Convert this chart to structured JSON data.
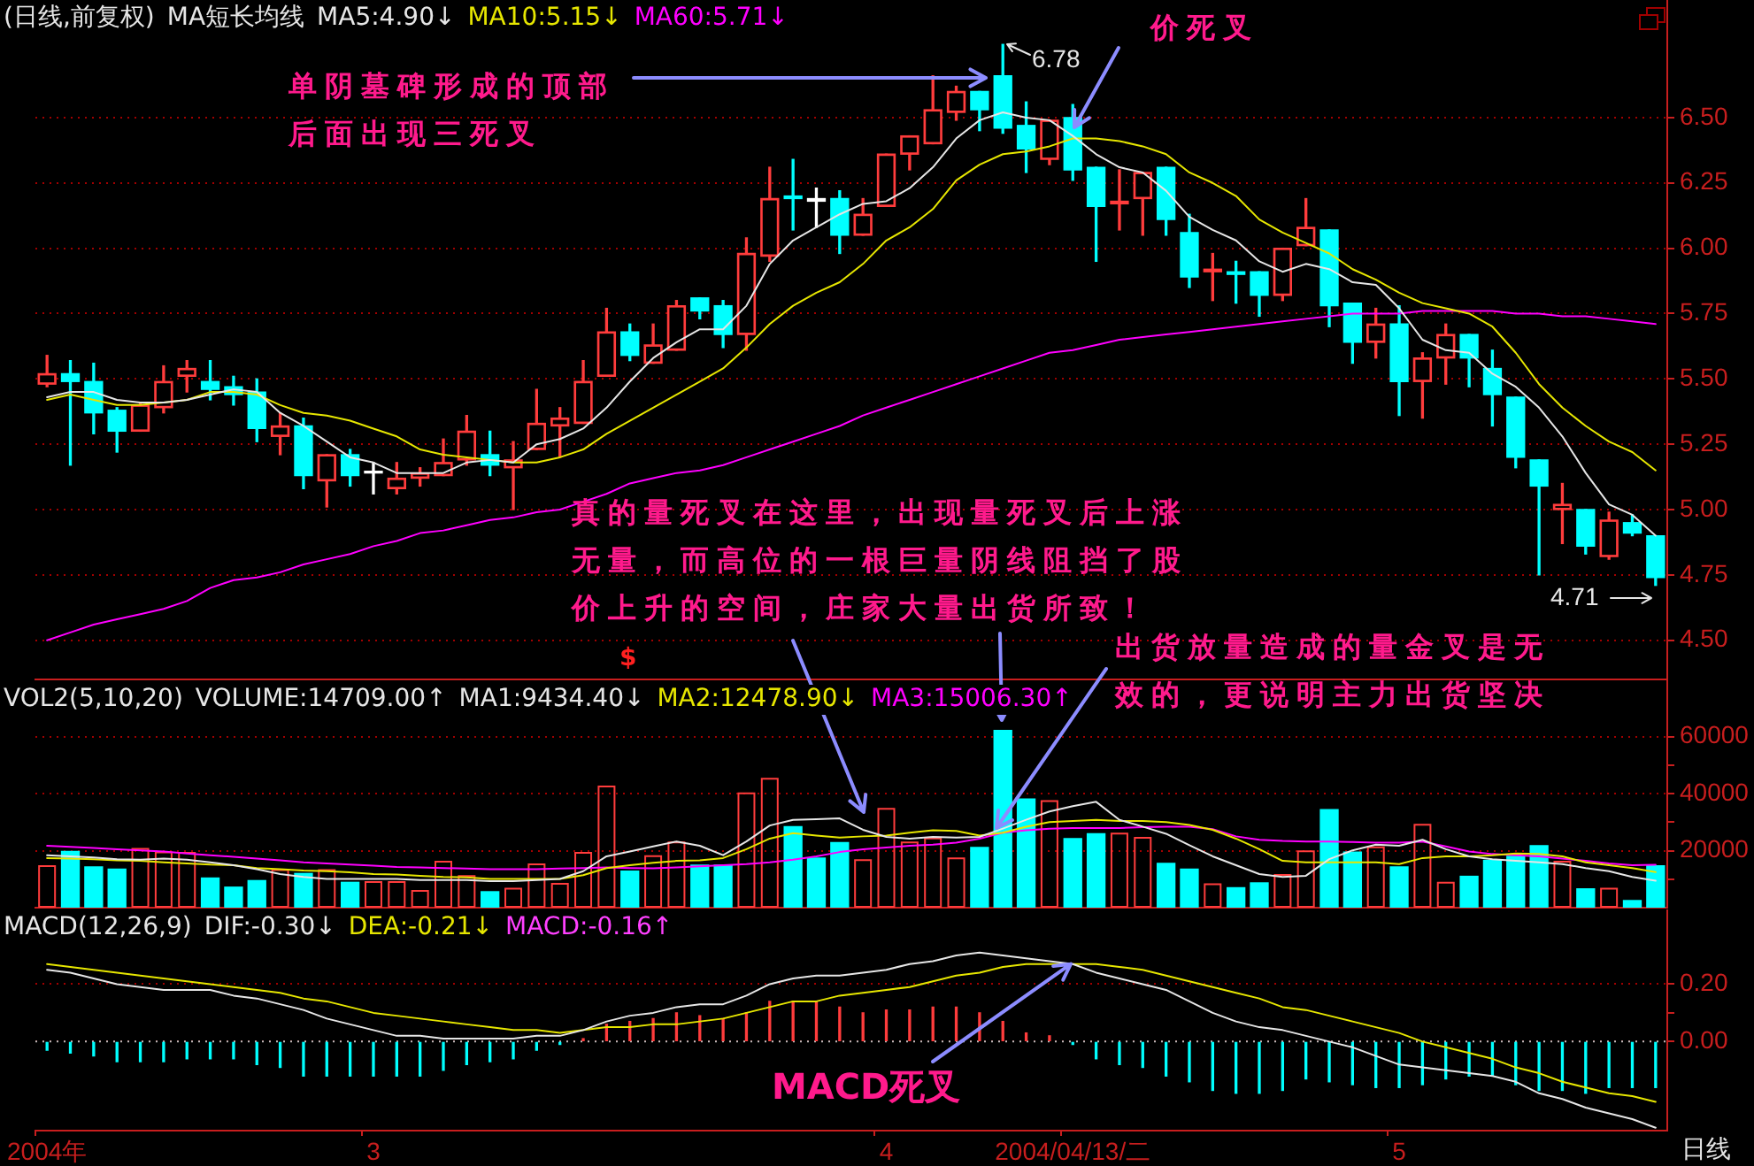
{
  "chart_data": [
    {
      "type": "candlestick",
      "title": "(日线,前复权)",
      "legend_title": "MA短长均线",
      "categories": [
        null,
        null,
        null,
        null,
        null,
        null,
        null,
        null,
        null,
        null,
        null,
        null,
        null,
        null,
        null,
        null,
        null,
        null,
        null,
        null,
        null,
        null,
        null,
        null,
        null,
        null,
        null,
        null,
        null,
        null,
        null,
        null,
        null,
        null,
        null,
        null,
        null,
        null,
        null,
        null,
        null,
        null,
        null,
        null,
        null,
        null,
        null,
        null,
        null,
        null,
        null,
        null,
        null,
        null,
        null,
        null,
        null,
        null,
        null,
        null,
        null,
        null,
        null,
        null,
        null,
        null,
        null,
        null,
        null,
        null
      ],
      "ohlc": [
        [
          5.48,
          5.59,
          5.47,
          5.52
        ],
        [
          5.52,
          5.57,
          5.17,
          5.49
        ],
        [
          5.49,
          5.56,
          5.29,
          5.37
        ],
        [
          5.38,
          5.39,
          5.22,
          5.3
        ],
        [
          5.3,
          5.41,
          5.3,
          5.4
        ],
        [
          5.39,
          5.55,
          5.37,
          5.49
        ],
        [
          5.51,
          5.57,
          5.45,
          5.54
        ],
        [
          5.49,
          5.57,
          5.42,
          5.46
        ],
        [
          5.47,
          5.51,
          5.4,
          5.44
        ],
        [
          5.45,
          5.5,
          5.26,
          5.31
        ],
        [
          5.28,
          5.37,
          5.21,
          5.32
        ],
        [
          5.32,
          5.35,
          5.08,
          5.13
        ],
        [
          5.11,
          5.21,
          5.01,
          5.21
        ],
        [
          5.21,
          5.23,
          5.09,
          5.13
        ],
        [
          5.14,
          5.18,
          5.06,
          5.14
        ],
        [
          5.08,
          5.18,
          5.06,
          5.12
        ],
        [
          5.12,
          5.16,
          5.09,
          5.14
        ],
        [
          5.13,
          5.27,
          5.13,
          5.18
        ],
        [
          5.19,
          5.36,
          5.17,
          5.3
        ],
        [
          5.21,
          5.3,
          5.13,
          5.17
        ],
        [
          5.16,
          5.26,
          5.0,
          5.19
        ],
        [
          5.23,
          5.46,
          5.23,
          5.33
        ],
        [
          5.32,
          5.39,
          5.2,
          5.35
        ],
        [
          5.33,
          5.57,
          5.33,
          5.49
        ],
        [
          5.51,
          5.77,
          5.51,
          5.68
        ],
        [
          5.68,
          5.71,
          5.57,
          5.59
        ],
        [
          5.56,
          5.71,
          5.56,
          5.63
        ],
        [
          5.61,
          5.8,
          5.61,
          5.78
        ],
        [
          5.81,
          5.81,
          5.73,
          5.76
        ],
        [
          5.78,
          5.8,
          5.62,
          5.67
        ],
        [
          5.67,
          6.04,
          5.61,
          5.98
        ],
        [
          5.97,
          6.31,
          5.95,
          6.19
        ],
        [
          6.2,
          6.34,
          6.07,
          6.19
        ],
        [
          6.19,
          6.23,
          6.08,
          6.18
        ],
        [
          6.19,
          6.22,
          5.98,
          6.05
        ],
        [
          6.05,
          6.19,
          6.05,
          6.13
        ],
        [
          6.16,
          6.36,
          6.16,
          6.36
        ],
        [
          6.36,
          6.43,
          6.3,
          6.43
        ],
        [
          6.4,
          6.66,
          6.4,
          6.53
        ],
        [
          6.52,
          6.62,
          6.49,
          6.6
        ],
        [
          6.6,
          6.6,
          6.45,
          6.53
        ],
        [
          6.66,
          6.78,
          6.44,
          6.46
        ],
        [
          6.47,
          6.56,
          6.29,
          6.38
        ],
        [
          6.34,
          6.49,
          6.32,
          6.49
        ],
        [
          6.5,
          6.55,
          6.26,
          6.3
        ],
        [
          6.31,
          6.31,
          5.95,
          6.16
        ],
        [
          6.17,
          6.3,
          6.07,
          6.18
        ],
        [
          6.19,
          6.29,
          6.05,
          6.29
        ],
        [
          6.31,
          6.31,
          6.05,
          6.11
        ],
        [
          6.06,
          6.13,
          5.85,
          5.89
        ],
        [
          5.91,
          5.98,
          5.8,
          5.92
        ],
        [
          5.91,
          5.95,
          5.79,
          5.9
        ],
        [
          5.91,
          5.91,
          5.74,
          5.82
        ],
        [
          5.82,
          6.0,
          5.8,
          6.0
        ],
        [
          6.01,
          6.19,
          6.01,
          6.08
        ],
        [
          6.07,
          6.07,
          5.7,
          5.78
        ],
        [
          5.79,
          5.79,
          5.56,
          5.64
        ],
        [
          5.64,
          5.77,
          5.58,
          5.71
        ],
        [
          5.71,
          5.78,
          5.36,
          5.49
        ],
        [
          5.49,
          5.6,
          5.35,
          5.58
        ],
        [
          5.58,
          5.71,
          5.48,
          5.67
        ],
        [
          5.67,
          5.67,
          5.47,
          5.58
        ],
        [
          5.54,
          5.61,
          5.32,
          5.44
        ],
        [
          5.43,
          5.43,
          5.16,
          5.2
        ],
        [
          5.19,
          5.19,
          4.75,
          5.09
        ],
        [
          5.0,
          5.1,
          4.87,
          5.02
        ],
        [
          5.0,
          5.0,
          4.83,
          4.86
        ],
        [
          4.82,
          4.99,
          4.81,
          4.96
        ],
        [
          4.95,
          4.98,
          4.9,
          4.91
        ],
        [
          4.9,
          4.9,
          4.71,
          4.74
        ]
      ],
      "colors": [
        "#ff3c3c",
        "#00ffff",
        "#00ffff",
        "#00ffff",
        "#ff3c3c",
        "#ff3c3c",
        "#ff3c3c",
        "#00ffff",
        "#00ffff",
        "#00ffff",
        "#ff3c3c",
        "#00ffff",
        "#ff3c3c",
        "#00ffff",
        "#ffffff",
        "#ff3c3c",
        "#ff3c3c",
        "#ff3c3c",
        "#ff3c3c",
        "#00ffff",
        "#ff3c3c",
        "#ff3c3c",
        "#ff3c3c",
        "#ff3c3c",
        "#ff3c3c",
        "#00ffff",
        "#ff3c3c",
        "#ff3c3c",
        "#00ffff",
        "#00ffff",
        "#ff3c3c",
        "#ff3c3c",
        "#00ffff",
        "#ffffff",
        "#00ffff",
        "#ff3c3c",
        "#ff3c3c",
        "#ff3c3c",
        "#ff3c3c",
        "#ff3c3c",
        "#00ffff",
        "#00ffff",
        "#00ffff",
        "#ff3c3c",
        "#00ffff",
        "#00ffff",
        "#ff3c3c",
        "#ff3c3c",
        "#00ffff",
        "#00ffff",
        "#ff3c3c",
        "#00ffff",
        "#00ffff",
        "#ff3c3c",
        "#ff3c3c",
        "#00ffff",
        "#00ffff",
        "#ff3c3c",
        "#00ffff",
        "#ff3c3c",
        "#ff3c3c",
        "#00ffff",
        "#00ffff",
        "#00ffff",
        "#00ffff",
        "#ff3c3c",
        "#00ffff",
        "#ff3c3c",
        "#00ffff",
        "#00ffff"
      ],
      "series": [
        {
          "name": "MA5:4.90↓",
          "type": "line",
          "color": "#e6e6e6",
          "values": [
            5.43,
            5.45,
            5.45,
            5.42,
            5.41,
            5.41,
            5.42,
            5.44,
            5.46,
            5.45,
            5.37,
            5.32,
            5.26,
            5.2,
            5.18,
            5.14,
            5.14,
            5.14,
            5.18,
            5.19,
            5.18,
            5.25,
            5.27,
            5.31,
            5.39,
            5.49,
            5.58,
            5.64,
            5.69,
            5.69,
            5.78,
            5.94,
            6.03,
            6.08,
            6.13,
            6.17,
            6.18,
            6.23,
            6.31,
            6.42,
            6.49,
            6.52,
            6.5,
            6.49,
            6.43,
            6.36,
            6.31,
            6.29,
            6.22,
            6.12,
            6.07,
            6.03,
            5.95,
            5.91,
            5.94,
            5.92,
            5.87,
            5.86,
            5.77,
            5.65,
            5.61,
            5.6,
            5.52,
            5.47,
            5.39,
            5.28,
            5.14,
            5.02,
            4.98,
            4.9
          ]
        },
        {
          "name": "MA10:5.15↓",
          "type": "line",
          "color": "#e6e600",
          "values": [
            5.42,
            5.44,
            5.42,
            5.4,
            5.4,
            5.41,
            5.42,
            5.45,
            5.45,
            5.44,
            5.4,
            5.37,
            5.36,
            5.34,
            5.31,
            5.28,
            5.23,
            5.21,
            5.2,
            5.19,
            5.18,
            5.18,
            5.2,
            5.23,
            5.29,
            5.34,
            5.39,
            5.44,
            5.49,
            5.54,
            5.62,
            5.71,
            5.78,
            5.83,
            5.87,
            5.94,
            6.03,
            6.08,
            6.15,
            6.26,
            6.32,
            6.36,
            6.37,
            6.39,
            6.42,
            6.42,
            6.41,
            6.39,
            6.36,
            6.29,
            6.25,
            6.2,
            6.11,
            6.06,
            6.02,
            5.98,
            5.92,
            5.88,
            5.83,
            5.79,
            5.77,
            5.75,
            5.7,
            5.6,
            5.48,
            5.39,
            5.32,
            5.26,
            5.22,
            5.15
          ]
        },
        {
          "name": "MA60:5.71↓",
          "type": "line",
          "color": "#ff00ff",
          "values": [
            4.5,
            4.53,
            4.56,
            4.58,
            4.6,
            4.62,
            4.65,
            4.7,
            4.73,
            4.74,
            4.76,
            4.79,
            4.81,
            4.83,
            4.86,
            4.88,
            4.91,
            4.92,
            4.94,
            4.96,
            4.97,
            4.99,
            5.0,
            5.03,
            5.06,
            5.1,
            5.12,
            5.14,
            5.15,
            5.17,
            5.2,
            5.23,
            5.26,
            5.29,
            5.32,
            5.36,
            5.39,
            5.42,
            5.45,
            5.48,
            5.51,
            5.54,
            5.57,
            5.6,
            5.61,
            5.63,
            5.65,
            5.66,
            5.67,
            5.68,
            5.69,
            5.7,
            5.71,
            5.72,
            5.73,
            5.74,
            5.75,
            5.75,
            5.75,
            5.76,
            5.76,
            5.76,
            5.76,
            5.75,
            5.75,
            5.74,
            5.74,
            5.73,
            5.72,
            5.71
          ]
        }
      ],
      "ylim": [
        4.35,
        6.95
      ],
      "yticks": [
        {
          "value": 4.5,
          "label": "4.50"
        },
        {
          "value": 4.75,
          "label": "4.75"
        },
        {
          "value": 5,
          "label": "5.00"
        },
        {
          "value": 5.25,
          "label": "5.25"
        },
        {
          "value": 5.5,
          "label": "5.50"
        },
        {
          "value": 5.75,
          "label": "5.75"
        },
        {
          "value": 6,
          "label": "6.00"
        },
        {
          "value": 6.25,
          "label": "6.25"
        },
        {
          "value": 6.5,
          "label": "6.50"
        }
      ],
      "grid": "y",
      "legend": "top left",
      "tick_labels": "y",
      "annotations": [
        "单阴墓碑形成的顶部后面出现三死叉",
        "价死叉",
        "6.78",
        "4.71",
        "真的量死叉在这里，出现量死叉后上涨无量，而高位的一根巨量阴线阻挡了股价上升的空间，庄家大量出货所致！",
        "$"
      ]
    },
    {
      "type": "bar",
      "title": "VOL2(5,10,20)",
      "subtitle": "VOLUME:14709.00↑",
      "categories": [
        null,
        null,
        null,
        null,
        null,
        null,
        null,
        null,
        null,
        null,
        null,
        null,
        null,
        null,
        null,
        null,
        null,
        null,
        null,
        null,
        null,
        null,
        null,
        null,
        null,
        null,
        null,
        null,
        null,
        null,
        null,
        null,
        null,
        null,
        null,
        null,
        null,
        null,
        null,
        null,
        null,
        null,
        null,
        null,
        null,
        null,
        null,
        null,
        null,
        null,
        null,
        null,
        null,
        null,
        null,
        null,
        null,
        null,
        null,
        null,
        null,
        null,
        null,
        null,
        null,
        null,
        null,
        null,
        null,
        null
      ],
      "series": [
        {
          "type": "bar",
          "colors": [
            "#ff3c3c",
            "#00ffff",
            "#00ffff",
            "#00ffff",
            "#ff3c3c",
            "#ff3c3c",
            "#ff3c3c",
            "#00ffff",
            "#00ffff",
            "#00ffff",
            "#ff3c3c",
            "#00ffff",
            "#ff3c3c",
            "#00ffff",
            "#ff3c3c",
            "#ff3c3c",
            "#ff3c3c",
            "#ff3c3c",
            "#ff3c3c",
            "#00ffff",
            "#ff3c3c",
            "#ff3c3c",
            "#ff3c3c",
            "#ff3c3c",
            "#ff3c3c",
            "#00ffff",
            "#ff3c3c",
            "#ff3c3c",
            "#00ffff",
            "#00ffff",
            "#ff3c3c",
            "#ff3c3c",
            "#00ffff",
            "#00ffff",
            "#00ffff",
            "#ff3c3c",
            "#ff3c3c",
            "#ff3c3c",
            "#ff3c3c",
            "#ff3c3c",
            "#00ffff",
            "#00ffff",
            "#00ffff",
            "#ff3c3c",
            "#00ffff",
            "#00ffff",
            "#ff3c3c",
            "#ff3c3c",
            "#00ffff",
            "#00ffff",
            "#ff3c3c",
            "#00ffff",
            "#00ffff",
            "#ff3c3c",
            "#ff3c3c",
            "#00ffff",
            "#00ffff",
            "#ff3c3c",
            "#00ffff",
            "#ff3c3c",
            "#ff3c3c",
            "#00ffff",
            "#00ffff",
            "#00ffff",
            "#00ffff",
            "#ff3c3c",
            "#00ffff",
            "#ff3c3c",
            "#00ffff",
            "#00ffff"
          ],
          "values": [
            14900,
            19700,
            14300,
            13500,
            20900,
            19700,
            19500,
            10400,
            7200,
            9500,
            13500,
            12000,
            13500,
            8900,
            9300,
            9300,
            6200,
            16400,
            11400,
            5600,
            7000,
            15500,
            8700,
            19500,
            42800,
            12800,
            18400,
            23200,
            14900,
            14900,
            40400,
            45500,
            28400,
            17400,
            22800,
            17000,
            35000,
            23200,
            24600,
            17600,
            21100,
            62100,
            38100,
            37700,
            24200,
            25900,
            26300,
            24800,
            15500,
            13500,
            8500,
            7000,
            8700,
            11800,
            20100,
            34400,
            19500,
            21500,
            14300,
            29400,
            9100,
            11000,
            16600,
            18000,
            21700,
            16400,
            6600,
            7000,
            2500,
            14709
          ]
        },
        {
          "name": "MA1:9434.40↓",
          "type": "line",
          "color": "#e6e6e6",
          "values": [
            18400,
            18000,
            17600,
            17000,
            16800,
            17200,
            16800,
            15900,
            14900,
            13500,
            11800,
            10800,
            10100,
            10100,
            10100,
            10100,
            9700,
            9700,
            9700,
            9300,
            9300,
            9700,
            10100,
            12800,
            18000,
            19700,
            21500,
            23200,
            21700,
            18400,
            23200,
            28800,
            30800,
            31000,
            31300,
            27300,
            24800,
            24200,
            24800,
            24600,
            24800,
            27700,
            30800,
            33700,
            35600,
            37100,
            30800,
            28400,
            25900,
            21900,
            18000,
            14900,
            11800,
            10800,
            11200,
            17000,
            20100,
            22100,
            21700,
            23800,
            20500,
            18000,
            17000,
            16400,
            15900,
            15300,
            13900,
            12800,
            10800,
            9434.4
          ]
        },
        {
          "name": "MA2:12478.90↓",
          "type": "line",
          "color": "#e6e600",
          "values": [
            17400,
            17200,
            17000,
            16600,
            16400,
            15900,
            15500,
            15100,
            14900,
            13900,
            13500,
            13000,
            12800,
            12400,
            11800,
            11600,
            11200,
            10800,
            10600,
            10100,
            10100,
            10100,
            10100,
            11400,
            13900,
            14900,
            15700,
            16400,
            16600,
            17400,
            20500,
            24200,
            26100,
            25300,
            24600,
            25000,
            25300,
            26300,
            27100,
            26900,
            25300,
            26300,
            28400,
            30000,
            30400,
            30800,
            30400,
            30400,
            30000,
            29000,
            27300,
            24200,
            20500,
            16400,
            15900,
            15900,
            15900,
            15900,
            15300,
            17400,
            18000,
            18000,
            18400,
            19000,
            18800,
            18000,
            15900,
            14900,
            13900,
            12478.9
          ]
        },
        {
          "name": "MA3:15006.30↑",
          "type": "line",
          "color": "#ff00ff",
          "values": [
            21700,
            21300,
            20900,
            20500,
            20100,
            19700,
            19000,
            18400,
            17800,
            17200,
            16600,
            15900,
            15500,
            15100,
            14700,
            14300,
            14100,
            13900,
            13700,
            13500,
            13500,
            13500,
            13700,
            13900,
            14100,
            13900,
            13800,
            14100,
            14500,
            14900,
            15300,
            15900,
            16800,
            18000,
            19500,
            20500,
            21100,
            21700,
            22100,
            22800,
            24200,
            26300,
            27100,
            27700,
            27900,
            27900,
            27900,
            28200,
            28400,
            28400,
            27500,
            25000,
            23800,
            23400,
            23200,
            23200,
            23000,
            22800,
            22800,
            23200,
            21500,
            19700,
            18800,
            18400,
            18000,
            17200,
            16400,
            15500,
            14900,
            15006.3
          ]
        }
      ],
      "ylim": [
        0,
        80000
      ],
      "yticks": [
        {
          "value": 10000,
          "label": null
        },
        20000,
        {
          "value": 30000,
          "label": null
        },
        40000,
        {
          "value": 50000,
          "label": null
        },
        60000
      ],
      "grid": "y",
      "legend": "top left",
      "tick_labels": "y",
      "annotations": [
        "出货放量造成的量金叉是无效的，更说明主力出货坚决"
      ]
    },
    {
      "type": "line",
      "title": "MACD(12,26,9)",
      "subtitle": "MACD:-0.16↑",
      "categories": [
        "2004年",
        null,
        null,
        null,
        null,
        null,
        null,
        null,
        null,
        null,
        null,
        null,
        null,
        null,
        "3",
        null,
        null,
        null,
        null,
        null,
        null,
        null,
        null,
        null,
        null,
        null,
        null,
        null,
        null,
        null,
        null,
        null,
        null,
        null,
        null,
        null,
        "4",
        null,
        null,
        null,
        null,
        null,
        null,
        null,
        "2004/04/13/二",
        null,
        null,
        null,
        null,
        null,
        null,
        null,
        null,
        null,
        null,
        null,
        null,
        null,
        "5",
        null,
        null,
        null,
        null,
        null,
        null,
        null,
        null,
        null,
        null,
        null
      ],
      "series": [
        {
          "name": "DIF:-0.30↓",
          "color": "#e6e6e6",
          "values": [
            0.25,
            0.24,
            0.22,
            0.2,
            0.19,
            0.18,
            0.18,
            0.18,
            0.16,
            0.15,
            0.13,
            0.11,
            0.08,
            0.06,
            0.04,
            0.02,
            0.02,
            0.01,
            0.01,
            0.01,
            0.01,
            0.02,
            0.02,
            0.04,
            0.07,
            0.09,
            0.1,
            0.12,
            0.13,
            0.13,
            0.16,
            0.2,
            0.22,
            0.23,
            0.23,
            0.24,
            0.25,
            0.27,
            0.28,
            0.3,
            0.31,
            0.3,
            0.29,
            0.28,
            0.27,
            0.24,
            0.22,
            0.2,
            0.18,
            0.14,
            0.1,
            0.07,
            0.05,
            0.04,
            0.02,
            0.0,
            -0.02,
            -0.05,
            -0.08,
            -0.09,
            -0.1,
            -0.11,
            -0.12,
            -0.14,
            -0.18,
            -0.2,
            -0.23,
            -0.25,
            -0.27,
            -0.3
          ]
        },
        {
          "name": "DEA:-0.21↓",
          "color": "#e6e600",
          "values": [
            0.27,
            0.26,
            0.25,
            0.24,
            0.23,
            0.22,
            0.21,
            0.2,
            0.19,
            0.18,
            0.17,
            0.15,
            0.14,
            0.12,
            0.1,
            0.09,
            0.08,
            0.07,
            0.06,
            0.05,
            0.04,
            0.04,
            0.03,
            0.04,
            0.05,
            0.05,
            0.06,
            0.06,
            0.07,
            0.08,
            0.1,
            0.12,
            0.14,
            0.14,
            0.16,
            0.17,
            0.18,
            0.19,
            0.21,
            0.23,
            0.24,
            0.26,
            0.27,
            0.27,
            0.27,
            0.27,
            0.26,
            0.25,
            0.23,
            0.21,
            0.19,
            0.17,
            0.15,
            0.12,
            0.11,
            0.09,
            0.07,
            0.05,
            0.03,
            0.0,
            -0.02,
            -0.04,
            -0.06,
            -0.09,
            -0.11,
            -0.14,
            -0.16,
            -0.18,
            -0.19,
            -0.21
          ]
        },
        {
          "type": "bar",
          "colors": [
            "#00ffff",
            "#00ffff",
            "#00ffff",
            "#00ffff",
            "#00ffff",
            "#00ffff",
            "#00ffff",
            "#00ffff",
            "#00ffff",
            "#00ffff",
            "#00ffff",
            "#00ffff",
            "#00ffff",
            "#00ffff",
            "#00ffff",
            "#00ffff",
            "#00ffff",
            "#00ffff",
            "#00ffff",
            "#00ffff",
            "#00ffff",
            "#00ffff",
            "#00ffff",
            "#ff3c3c",
            "#ff3c3c",
            "#ff3c3c",
            "#ff3c3c",
            "#ff3c3c",
            "#ff3c3c",
            "#ff3c3c",
            "#ff3c3c",
            "#ff3c3c",
            "#ff3c3c",
            "#ff3c3c",
            "#ff3c3c",
            "#ff3c3c",
            "#ff3c3c",
            "#ff3c3c",
            "#ff3c3c",
            "#ff3c3c",
            "#ff3c3c",
            "#ff3c3c",
            "#ff3c3c",
            "#ff3c3c",
            "#00ffff",
            "#00ffff",
            "#00ffff",
            "#00ffff",
            "#00ffff",
            "#00ffff",
            "#00ffff",
            "#00ffff",
            "#00ffff",
            "#00ffff",
            "#00ffff",
            "#00ffff",
            "#00ffff",
            "#00ffff",
            "#00ffff",
            "#00ffff",
            "#00ffff",
            "#00ffff",
            "#00ffff",
            "#00ffff",
            "#00ffff",
            "#00ffff",
            "#00ffff",
            "#00ffff",
            "#00ffff",
            "#00ffff"
          ],
          "values": [
            -0.03,
            -0.04,
            -0.05,
            -0.07,
            -0.07,
            -0.07,
            -0.06,
            -0.06,
            -0.06,
            -0.08,
            -0.09,
            -0.12,
            -0.12,
            -0.12,
            -0.12,
            -0.12,
            -0.12,
            -0.1,
            -0.08,
            -0.07,
            -0.06,
            -0.03,
            -0.01,
            0.01,
            0.06,
            0.07,
            0.08,
            0.1,
            0.09,
            0.08,
            0.1,
            0.14,
            0.14,
            0.14,
            0.12,
            0.1,
            0.11,
            0.11,
            0.12,
            0.12,
            0.1,
            0.07,
            0.03,
            0.02,
            -0.01,
            -0.06,
            -0.08,
            -0.09,
            -0.12,
            -0.14,
            -0.17,
            -0.18,
            -0.18,
            -0.17,
            -0.13,
            -0.14,
            -0.15,
            -0.16,
            -0.16,
            -0.15,
            -0.13,
            -0.12,
            -0.12,
            -0.15,
            -0.17,
            -0.17,
            -0.18,
            -0.16,
            -0.16,
            -0.16
          ]
        }
      ],
      "ylim": [
        -0.31,
        0.46
      ],
      "yticks": [
        {
          "value": 0,
          "label": "0.00"
        },
        {
          "value": 0.1,
          "label": null
        },
        {
          "value": 0.2,
          "label": "0.20"
        }
      ],
      "ref_lines": [
        {
          "axis": "y",
          "value": 0,
          "color": "#bdbdbd",
          "line_style": "dotted"
        }
      ],
      "grid": "y",
      "legend": "top left",
      "annotations": [
        {
          "text": "MACD死叉",
          "y": 0.27
        },
        "日线"
      ]
    }
  ]
}
